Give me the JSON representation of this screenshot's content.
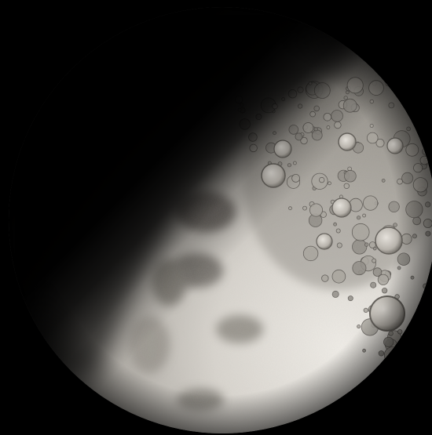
{
  "image": {
    "subject": "moon-phase",
    "phase": "waxing-gibbous",
    "colors": {
      "background": "#000000",
      "highlands": "#b8b4ad",
      "maria": "#6f6b64",
      "crater_rim": "#e3dfd8",
      "shadow": "#050505"
    }
  }
}
